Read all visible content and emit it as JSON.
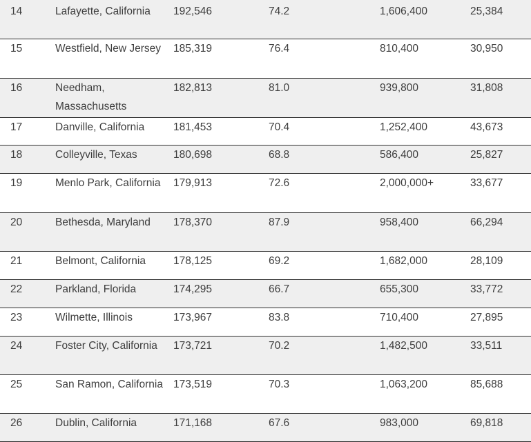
{
  "table": {
    "rows": [
      {
        "rank": "14",
        "city": "Lafayette, California",
        "income": "192,546",
        "education": "74.2",
        "home_value": "1,606,400",
        "population": "25,384"
      },
      {
        "rank": "15",
        "city": "Westfield, New Jersey",
        "income": "185,319",
        "education": "76.4",
        "home_value": "810,400",
        "population": "30,950"
      },
      {
        "rank": "16",
        "city": "Needham, Massachusetts",
        "income": "182,813",
        "education": "81.0",
        "home_value": "939,800",
        "population": "31,808"
      },
      {
        "rank": "17",
        "city": "Danville, California",
        "income": "181,453",
        "education": "70.4",
        "home_value": "1,252,400",
        "population": "43,673"
      },
      {
        "rank": "18",
        "city": "Colleyville, Texas",
        "income": "180,698",
        "education": "68.8",
        "home_value": "586,400",
        "population": "25,827"
      },
      {
        "rank": "19",
        "city": "Menlo Park, California",
        "income": "179,913",
        "education": "72.6",
        "home_value": "2,000,000+",
        "population": "33,677"
      },
      {
        "rank": "20",
        "city": "Bethesda, Maryland",
        "income": "178,370",
        "education": "87.9",
        "home_value": "958,400",
        "population": "66,294"
      },
      {
        "rank": "21",
        "city": "Belmont, California",
        "income": "178,125",
        "education": "69.2",
        "home_value": "1,682,000",
        "population": "28,109"
      },
      {
        "rank": "22",
        "city": "Parkland, Florida",
        "income": "174,295",
        "education": "66.7",
        "home_value": "655,300",
        "population": "33,772"
      },
      {
        "rank": "23",
        "city": "Wilmette, Illinois",
        "income": "173,967",
        "education": "83.8",
        "home_value": "710,400",
        "population": "27,895"
      },
      {
        "rank": "24",
        "city": "Foster City, California",
        "income": "173,721",
        "education": "70.2",
        "home_value": "1,482,500",
        "population": "33,511"
      },
      {
        "rank": "25",
        "city": "San Ramon, California",
        "income": "173,519",
        "education": "70.3",
        "home_value": "1,063,200",
        "population": "85,688"
      },
      {
        "rank": "26",
        "city": "Dublin, California",
        "income": "171,168",
        "education": "67.6",
        "home_value": "983,000",
        "population": "69,818"
      }
    ]
  }
}
